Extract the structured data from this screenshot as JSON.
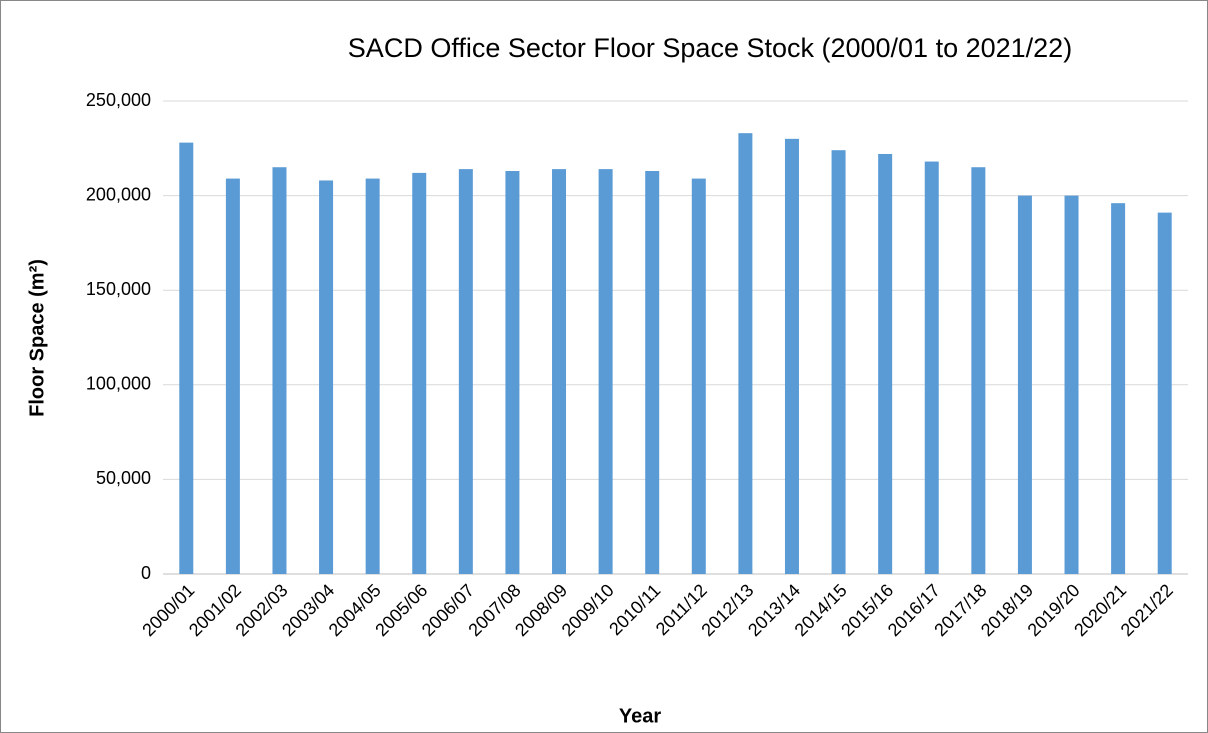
{
  "chart_data": {
    "type": "bar",
    "title": "SACD Office Sector Floor Space Stock (2000/01 to 2021/22)",
    "x_label": "Year",
    "y_label": "Floor Space (m²)",
    "categories": [
      "2000/01",
      "2001/02",
      "2002/03",
      "2003/04",
      "2004/05",
      "2005/06",
      "2006/07",
      "2007/08",
      "2008/09",
      "2009/10",
      "2010/11",
      "2011/12",
      "2012/13",
      "2013/14",
      "2014/15",
      "2015/16",
      "2016/17",
      "2017/18",
      "2018/19",
      "2019/20",
      "2020/21",
      "2021/22"
    ],
    "values": [
      228000,
      209000,
      215000,
      208000,
      209000,
      212000,
      214000,
      213000,
      214000,
      214000,
      213000,
      209000,
      233000,
      230000,
      224000,
      222000,
      218000,
      215000,
      200000,
      200000,
      196000,
      191000
    ],
    "color": "#5b9bd5",
    "ylim": [
      0,
      250000
    ],
    "yticks": [
      0,
      {
        "value": 50000,
        "label": "50,000"
      },
      {
        "value": 100000,
        "label": "100,000"
      },
      {
        "value": 150000,
        "label": "150,000"
      },
      {
        "value": 200000,
        "label": "200,000"
      },
      {
        "value": 250000,
        "label": "250,000"
      }
    ],
    "grid": true
  }
}
